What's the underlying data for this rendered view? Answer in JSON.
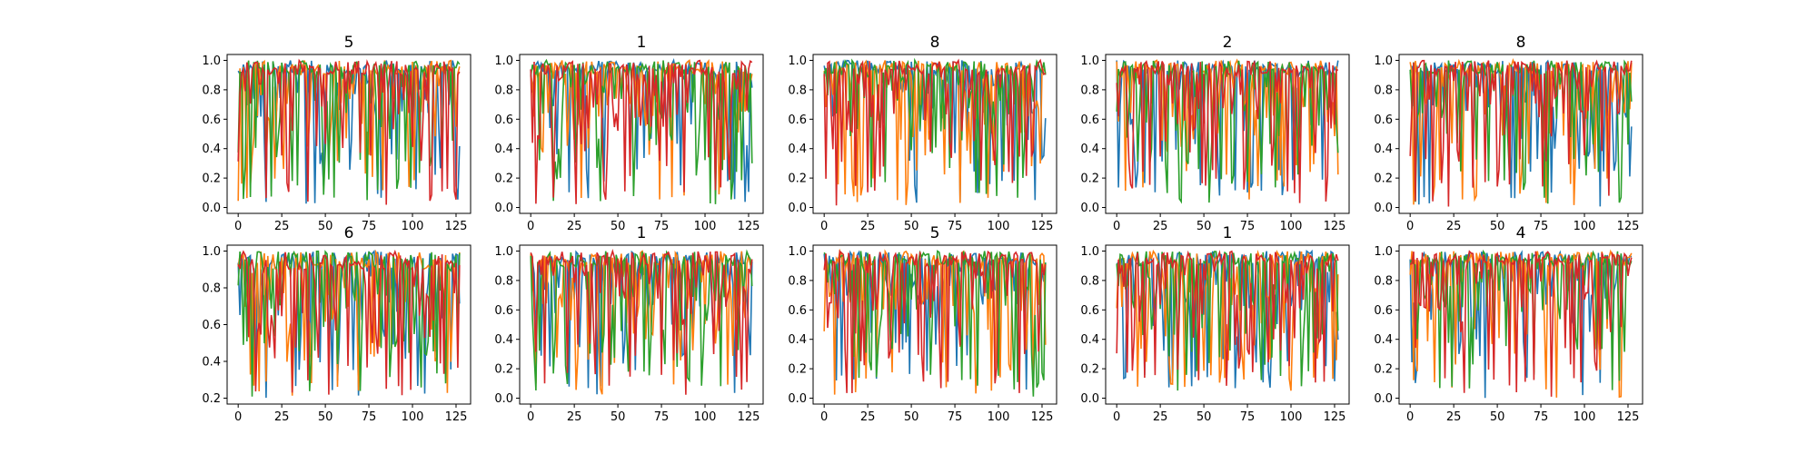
{
  "colors": {
    "series1": "#1f77b4",
    "series2": "#ff7f0e",
    "series3": "#2ca02c",
    "series4": "#d62728"
  },
  "chart_data": [
    {
      "type": "line",
      "title": "5",
      "xlim": [
        0,
        127
      ],
      "ylim": [
        0.0,
        1.0
      ],
      "xticks": [
        "0",
        "25",
        "50",
        "75",
        "100",
        "125"
      ],
      "yticks": [
        "0.0",
        "0.2",
        "0.4",
        "0.6",
        "0.8",
        "1.0"
      ],
      "tick_values": [
        0.0,
        0.2,
        0.4,
        0.6,
        0.8,
        1.0
      ],
      "seed": 11,
      "min_value": 0.01,
      "grid": false,
      "legend": "none"
    },
    {
      "type": "line",
      "title": "1",
      "xlim": [
        0,
        127
      ],
      "ylim": [
        0.0,
        1.0
      ],
      "xticks": [
        "0",
        "25",
        "50",
        "75",
        "100",
        "125"
      ],
      "yticks": [
        "0.0",
        "0.2",
        "0.4",
        "0.6",
        "0.8",
        "1.0"
      ],
      "tick_values": [
        0.0,
        0.2,
        0.4,
        0.6,
        0.8,
        1.0
      ],
      "seed": 23,
      "min_value": 0.02,
      "grid": false,
      "legend": "none"
    },
    {
      "type": "line",
      "title": "8",
      "xlim": [
        0,
        127
      ],
      "ylim": [
        0.0,
        1.0
      ],
      "xticks": [
        "0",
        "25",
        "50",
        "75",
        "100",
        "125"
      ],
      "yticks": [
        "0.0",
        "0.2",
        "0.4",
        "0.6",
        "0.8",
        "1.0"
      ],
      "tick_values": [
        0.0,
        0.2,
        0.4,
        0.6,
        0.8,
        1.0
      ],
      "seed": 37,
      "min_value": 0.01,
      "grid": false,
      "legend": "none"
    },
    {
      "type": "line",
      "title": "2",
      "xlim": [
        0,
        127
      ],
      "ylim": [
        0.0,
        1.0
      ],
      "xticks": [
        "0",
        "25",
        "50",
        "75",
        "100",
        "125"
      ],
      "yticks": [
        "0.0",
        "0.2",
        "0.4",
        "0.6",
        "0.8",
        "1.0"
      ],
      "tick_values": [
        0.0,
        0.2,
        0.4,
        0.6,
        0.8,
        1.0
      ],
      "seed": 41,
      "min_value": 0.03,
      "grid": false,
      "legend": "none"
    },
    {
      "type": "line",
      "title": "8",
      "xlim": [
        0,
        127
      ],
      "ylim": [
        0.0,
        1.0
      ],
      "xticks": [
        "0",
        "25",
        "50",
        "75",
        "100",
        "125"
      ],
      "yticks": [
        "0.0",
        "0.2",
        "0.4",
        "0.6",
        "0.8",
        "1.0"
      ],
      "tick_values": [
        0.0,
        0.2,
        0.4,
        0.6,
        0.8,
        1.0
      ],
      "seed": 53,
      "min_value": 0.0,
      "grid": false,
      "legend": "none"
    },
    {
      "type": "line",
      "title": "6",
      "xlim": [
        0,
        127
      ],
      "ylim": [
        0.2,
        1.0
      ],
      "xticks": [
        "0",
        "25",
        "50",
        "75",
        "100",
        "125"
      ],
      "yticks": [
        "0.2",
        "0.4",
        "0.6",
        "0.8",
        "1.0"
      ],
      "tick_values": [
        0.2,
        0.4,
        0.6,
        0.8,
        1.0
      ],
      "seed": 67,
      "min_value": 0.19,
      "grid": false,
      "legend": "none"
    },
    {
      "type": "line",
      "title": "1",
      "xlim": [
        0,
        127
      ],
      "ylim": [
        0.0,
        1.0
      ],
      "xticks": [
        "0",
        "25",
        "50",
        "75",
        "100",
        "125"
      ],
      "yticks": [
        "0.0",
        "0.2",
        "0.4",
        "0.6",
        "0.8",
        "1.0"
      ],
      "tick_values": [
        0.0,
        0.2,
        0.4,
        0.6,
        0.8,
        1.0
      ],
      "seed": 71,
      "min_value": 0.02,
      "grid": false,
      "legend": "none"
    },
    {
      "type": "line",
      "title": "5",
      "xlim": [
        0,
        127
      ],
      "ylim": [
        0.0,
        1.0
      ],
      "xticks": [
        "0",
        "25",
        "50",
        "75",
        "100",
        "125"
      ],
      "yticks": [
        "0.0",
        "0.2",
        "0.4",
        "0.6",
        "0.8",
        "1.0"
      ],
      "tick_values": [
        0.0,
        0.2,
        0.4,
        0.6,
        0.8,
        1.0
      ],
      "seed": 83,
      "min_value": 0.0,
      "grid": false,
      "legend": "none"
    },
    {
      "type": "line",
      "title": "1",
      "xlim": [
        0,
        127
      ],
      "ylim": [
        0.0,
        1.0
      ],
      "xticks": [
        "0",
        "25",
        "50",
        "75",
        "100",
        "125"
      ],
      "yticks": [
        "0.0",
        "0.2",
        "0.4",
        "0.6",
        "0.8",
        "1.0"
      ],
      "tick_values": [
        0.0,
        0.2,
        0.4,
        0.6,
        0.8,
        1.0
      ],
      "seed": 97,
      "min_value": 0.05,
      "grid": false,
      "legend": "none"
    },
    {
      "type": "line",
      "title": "4",
      "xlim": [
        0,
        127
      ],
      "ylim": [
        0.0,
        1.0
      ],
      "xticks": [
        "0",
        "25",
        "50",
        "75",
        "100",
        "125"
      ],
      "yticks": [
        "0.0",
        "0.2",
        "0.4",
        "0.6",
        "0.8",
        "1.0"
      ],
      "tick_values": [
        0.0,
        0.2,
        0.4,
        0.6,
        0.8,
        1.0
      ],
      "seed": 101,
      "min_value": 0.0,
      "grid": false,
      "legend": "none"
    }
  ]
}
